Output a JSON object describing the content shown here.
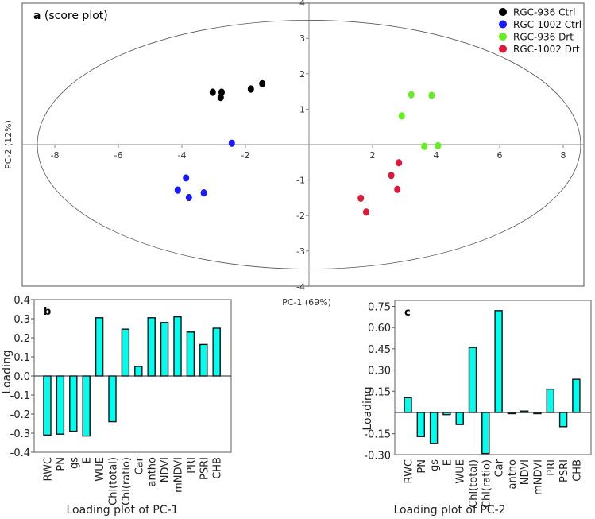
{
  "chart_data": [
    {
      "type": "scatter",
      "panel_label": "a",
      "title": "(score plot)",
      "xlabel": "PC-1 (69%)",
      "ylabel": "PC-2 (12%)",
      "xlim": [
        -9,
        9
      ],
      "ylim": [
        -4,
        4
      ],
      "xticks": [
        -8,
        -6,
        -4,
        -2,
        2,
        4,
        6,
        8
      ],
      "yticks": [
        4,
        3,
        2,
        1,
        -1,
        -2,
        -3,
        -4
      ],
      "confidence_ellipse": {
        "rx": 8.55,
        "ry": 3.51
      },
      "legend_position": "top-right",
      "series": [
        {
          "name": "RGC-936 Ctrl",
          "color": "#000000",
          "points": [
            [
              -3.03,
              1.48
            ],
            [
              -2.75,
              1.48
            ],
            [
              -2.78,
              1.33
            ],
            [
              -1.83,
              1.57
            ],
            [
              -1.47,
              1.72
            ]
          ]
        },
        {
          "name": "RGC-1002 Ctrl",
          "color": "#1a1aff",
          "points": [
            [
              -2.43,
              0.04
            ],
            [
              -3.87,
              -0.94
            ],
            [
              -4.13,
              -1.28
            ],
            [
              -3.78,
              -1.49
            ],
            [
              -3.31,
              -1.36
            ]
          ]
        },
        {
          "name": "RGC-936 Drt",
          "color": "#66ee22",
          "points": [
            [
              3.22,
              1.41
            ],
            [
              3.86,
              1.39
            ],
            [
              2.92,
              0.81
            ],
            [
              3.63,
              -0.05
            ],
            [
              4.06,
              -0.03
            ]
          ]
        },
        {
          "name": "RGC-1002 Drt",
          "color": "#dd1a3a",
          "points": [
            [
              2.83,
              -0.51
            ],
            [
              2.59,
              -0.87
            ],
            [
              2.78,
              -1.26
            ],
            [
              1.63,
              -1.51
            ],
            [
              1.8,
              -1.9
            ]
          ]
        }
      ]
    },
    {
      "type": "bar",
      "panel_label": "b",
      "title": "Loading plot of PC-1",
      "ylabel": "Loading",
      "ylim": [
        -0.4,
        0.4
      ],
      "yticks": [
        "0.4",
        "0.3",
        "0.2",
        "0.1",
        "0.0",
        "-0.1",
        "-0.2",
        "-0.3",
        "-0.4"
      ],
      "bar_color": "#00ffee",
      "categories": [
        "RWC",
        "PN",
        "gs",
        "E",
        "WUE",
        "Chl(total)",
        "Chl(ratio)",
        "Car",
        "antho",
        "NDVI",
        "mNDVI",
        "PRI",
        "PSRI",
        "CHB"
      ],
      "values": [
        -0.31,
        -0.305,
        -0.29,
        -0.315,
        0.305,
        -0.24,
        0.245,
        0.05,
        0.305,
        0.28,
        0.31,
        0.23,
        0.165,
        0.25
      ]
    },
    {
      "type": "bar",
      "panel_label": "c",
      "title": "Loading plot of PC-2",
      "ylabel": "Loading",
      "ylim": [
        -0.3,
        0.78
      ],
      "yticks": [
        "0.75",
        "0.60",
        "0.45",
        "0.30",
        "0.15",
        "-0.15",
        "-0.30"
      ],
      "bar_color": "#00ffee",
      "categories": [
        "RWC",
        "PN",
        "gs",
        "E",
        "WUE",
        "Chl(total)",
        "Chl(ratio)",
        "Car",
        "antho",
        "NDVI",
        "mNDVI",
        "PRI",
        "PSRI",
        "CHB"
      ],
      "values": [
        0.105,
        -0.17,
        -0.22,
        -0.015,
        -0.085,
        0.46,
        -0.29,
        0.72,
        0.0,
        0.01,
        0.0,
        0.165,
        -0.1,
        0.235
      ]
    }
  ]
}
